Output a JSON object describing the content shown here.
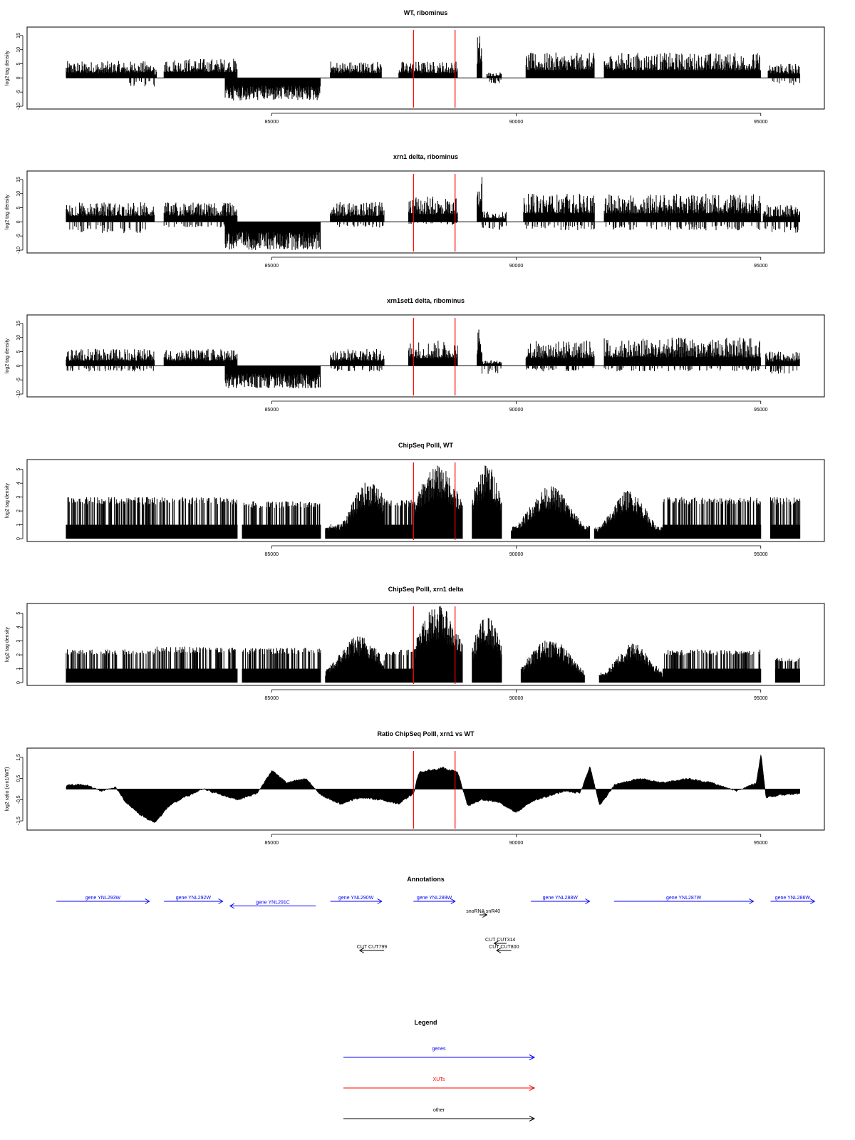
{
  "chart_data": [
    {
      "type": "area",
      "title": "WT, ribominus",
      "ylabel": "log2 tag density",
      "xlim": [
        80800,
        95800
      ],
      "ylim": [
        -10,
        17
      ],
      "yticks": [
        -10,
        -5,
        0,
        5,
        10,
        15
      ],
      "xticks": [
        85000,
        90000,
        95000
      ],
      "markers": [
        87900,
        88750
      ],
      "kind": "rna",
      "segments": [
        {
          "x0": 80800,
          "x1": 82600,
          "min": 0,
          "max": 6,
          "peaks": []
        },
        {
          "x0": 82050,
          "x1": 82650,
          "min": -3,
          "max": 3,
          "peaks": []
        },
        {
          "x0": 82800,
          "x1": 84300,
          "min": 0,
          "max": 7,
          "peaks": []
        },
        {
          "x0": 84050,
          "x1": 86000,
          "min": -8,
          "max": 0,
          "peaks": []
        },
        {
          "x0": 86200,
          "x1": 87250,
          "min": 0,
          "max": 6,
          "peaks": []
        },
        {
          "x0": 87600,
          "x1": 88800,
          "min": 0,
          "max": 6,
          "peaks": []
        },
        {
          "x0": 89200,
          "x1": 89300,
          "min": 0,
          "max": 16,
          "peaks": []
        },
        {
          "x0": 89400,
          "x1": 89700,
          "min": -2,
          "max": 2,
          "peaks": []
        },
        {
          "x0": 90200,
          "x1": 91600,
          "min": 0,
          "max": 9,
          "peaks": []
        },
        {
          "x0": 91800,
          "x1": 95000,
          "min": 0,
          "max": 9,
          "peaks": []
        },
        {
          "x0": 95150,
          "x1": 95800,
          "min": -3,
          "max": 5,
          "peaks": []
        }
      ]
    },
    {
      "type": "area",
      "title": "xrn1 delta, ribominus",
      "ylabel": "log2 tag density",
      "xlim": [
        80800,
        95800
      ],
      "ylim": [
        -10,
        17
      ],
      "yticks": [
        -10,
        -5,
        0,
        5,
        10,
        15
      ],
      "xticks": [
        85000,
        90000,
        95000
      ],
      "markers": [
        87900,
        88750
      ],
      "kind": "rna",
      "segments": [
        {
          "x0": 80800,
          "x1": 82600,
          "min": -4,
          "max": 7,
          "peaks": []
        },
        {
          "x0": 82800,
          "x1": 84300,
          "min": -2,
          "max": 7,
          "peaks": []
        },
        {
          "x0": 84050,
          "x1": 86000,
          "min": -10,
          "max": 0,
          "peaks": []
        },
        {
          "x0": 86200,
          "x1": 87300,
          "min": -2,
          "max": 7,
          "peaks": []
        },
        {
          "x0": 87800,
          "x1": 88800,
          "min": -1,
          "max": 9,
          "peaks": []
        },
        {
          "x0": 89200,
          "x1": 89300,
          "min": 0,
          "max": 17,
          "peaks": []
        },
        {
          "x0": 89300,
          "x1": 89800,
          "min": -3,
          "max": 4,
          "peaks": []
        },
        {
          "x0": 90150,
          "x1": 91600,
          "min": -3,
          "max": 10,
          "peaks": []
        },
        {
          "x0": 91800,
          "x1": 95000,
          "min": -3,
          "max": 10,
          "peaks": []
        },
        {
          "x0": 95050,
          "x1": 95800,
          "min": -4,
          "max": 6,
          "peaks": []
        }
      ]
    },
    {
      "type": "area",
      "title": "xrn1set1 delta, ribominus",
      "ylabel": "log2 tag density",
      "xlim": [
        80800,
        95800
      ],
      "ylim": [
        -10,
        17
      ],
      "yticks": [
        -10,
        -5,
        0,
        5,
        10,
        15
      ],
      "xticks": [
        85000,
        90000,
        95000
      ],
      "markers": [
        87900,
        88750
      ],
      "kind": "rna",
      "segments": [
        {
          "x0": 80800,
          "x1": 82600,
          "min": -2,
          "max": 6,
          "peaks": []
        },
        {
          "x0": 82800,
          "x1": 84300,
          "min": 0,
          "max": 6,
          "peaks": []
        },
        {
          "x0": 84050,
          "x1": 86000,
          "min": -8,
          "max": 0,
          "peaks": []
        },
        {
          "x0": 86200,
          "x1": 87300,
          "min": -2,
          "max": 6,
          "peaks": []
        },
        {
          "x0": 87800,
          "x1": 88800,
          "min": 0,
          "max": 9,
          "peaks": []
        },
        {
          "x0": 89200,
          "x1": 89300,
          "min": 0,
          "max": 14,
          "peaks": []
        },
        {
          "x0": 89300,
          "x1": 89700,
          "min": -3,
          "max": 2,
          "peaks": []
        },
        {
          "x0": 90200,
          "x1": 91600,
          "min": -2,
          "max": 9,
          "peaks": []
        },
        {
          "x0": 91800,
          "x1": 95000,
          "min": -2,
          "max": 10,
          "peaks": []
        },
        {
          "x0": 95100,
          "x1": 95800,
          "min": -3,
          "max": 5,
          "peaks": []
        }
      ]
    },
    {
      "type": "area",
      "title": "ChipSeq PolII, WT",
      "ylabel": "log2 tag density",
      "xlim": [
        80800,
        95800
      ],
      "ylim": [
        0,
        5.5
      ],
      "yticks": [
        0,
        1,
        2,
        3,
        4,
        5
      ],
      "xticks": [
        85000,
        90000,
        95000
      ],
      "markers": [
        87900,
        88750
      ],
      "kind": "chip",
      "segments": [
        {
          "x0": 80800,
          "x1": 84300,
          "min": 0,
          "max": 3,
          "peaks": []
        },
        {
          "x0": 84400,
          "x1": 86000,
          "min": 0,
          "max": 2.7,
          "peaks": []
        },
        {
          "x0": 86100,
          "x1": 87300,
          "min": 0,
          "max": 4.2,
          "peaks": [
            [
              87000,
              4.2,
              500
            ]
          ]
        },
        {
          "x0": 87300,
          "x1": 87900,
          "min": 0,
          "max": 2.8,
          "peaks": []
        },
        {
          "x0": 87900,
          "x1": 88900,
          "min": 0,
          "max": 5.3,
          "peaks": [
            [
              88400,
              5.3,
              600
            ]
          ]
        },
        {
          "x0": 89100,
          "x1": 89700,
          "min": 0,
          "max": 5.4,
          "peaks": [
            [
              89400,
              5.4,
              400
            ]
          ]
        },
        {
          "x0": 89900,
          "x1": 91500,
          "min": 0,
          "max": 3.8,
          "peaks": [
            [
              90700,
              3.8,
              600
            ]
          ]
        },
        {
          "x0": 91600,
          "x1": 93000,
          "min": 0,
          "max": 3.5,
          "peaks": [
            [
              92300,
              3.5,
              500
            ]
          ]
        },
        {
          "x0": 93000,
          "x1": 95000,
          "min": 0,
          "max": 3,
          "peaks": []
        },
        {
          "x0": 95200,
          "x1": 95800,
          "min": 0,
          "max": 3,
          "peaks": []
        }
      ]
    },
    {
      "type": "area",
      "title": "ChipSeq PolII, xrn1 delta",
      "ylabel": "log2 tag density",
      "xlim": [
        80800,
        95800
      ],
      "ylim": [
        0,
        5.5
      ],
      "yticks": [
        0,
        1,
        2,
        3,
        4,
        5
      ],
      "xticks": [
        85000,
        90000,
        95000
      ],
      "markers": [
        87900,
        88750
      ],
      "kind": "chip",
      "segments": [
        {
          "x0": 80800,
          "x1": 82600,
          "min": 0,
          "max": 2.4,
          "peaks": []
        },
        {
          "x0": 82600,
          "x1": 84300,
          "min": 0,
          "max": 2.6,
          "peaks": []
        },
        {
          "x0": 84400,
          "x1": 86000,
          "min": 0,
          "max": 2.5,
          "peaks": []
        },
        {
          "x0": 86100,
          "x1": 87300,
          "min": 0,
          "max": 3.4,
          "peaks": [
            [
              86800,
              3.4,
              600
            ]
          ]
        },
        {
          "x0": 87300,
          "x1": 87900,
          "min": 0,
          "max": 2.4,
          "peaks": []
        },
        {
          "x0": 87900,
          "x1": 88900,
          "min": 0,
          "max": 5.6,
          "peaks": [
            [
              88400,
              5.6,
              600
            ]
          ]
        },
        {
          "x0": 89100,
          "x1": 89700,
          "min": 0,
          "max": 4.8,
          "peaks": [
            [
              89400,
              4.8,
              400
            ]
          ]
        },
        {
          "x0": 90100,
          "x1": 91400,
          "min": 0,
          "max": 3.2,
          "peaks": [
            [
              90700,
              3.2,
              600
            ]
          ]
        },
        {
          "x0": 91700,
          "x1": 93000,
          "min": 0,
          "max": 2.9,
          "peaks": [
            [
              92400,
              2.9,
              500
            ]
          ]
        },
        {
          "x0": 93000,
          "x1": 95000,
          "min": 0,
          "max": 2.4,
          "peaks": []
        },
        {
          "x0": 95300,
          "x1": 95800,
          "min": 0,
          "max": 1.8,
          "peaks": []
        }
      ]
    },
    {
      "type": "area",
      "title": "Ratio ChipSeq PolII, xrn1 vs WT",
      "ylabel": "log2 ratio (xrn1/WT)",
      "xlim": [
        80800,
        95800
      ],
      "ylim": [
        -1.8,
        1.8
      ],
      "yticks": [
        -1.5,
        -0.5,
        0.5,
        1.5
      ],
      "ytick_labels": [
        "-1.5",
        "-0.5",
        "0.5",
        "1.5"
      ],
      "xticks": [
        85000,
        90000,
        95000
      ],
      "markers": [
        87900,
        88750
      ],
      "kind": "ratio",
      "knots": [
        [
          80800,
          0.2
        ],
        [
          81200,
          0.2
        ],
        [
          81500,
          -0.1
        ],
        [
          81800,
          0.1
        ],
        [
          82000,
          -0.6
        ],
        [
          82300,
          -1.2
        ],
        [
          82600,
          -1.6
        ],
        [
          82900,
          -0.8
        ],
        [
          83200,
          -0.4
        ],
        [
          83600,
          0.0
        ],
        [
          84000,
          -0.3
        ],
        [
          84300,
          -0.5
        ],
        [
          84700,
          -0.2
        ],
        [
          85000,
          0.9
        ],
        [
          85300,
          0.3
        ],
        [
          85700,
          0.5
        ],
        [
          86000,
          -0.3
        ],
        [
          86400,
          -0.7
        ],
        [
          86800,
          -0.4
        ],
        [
          87200,
          -0.5
        ],
        [
          87600,
          -0.7
        ],
        [
          87900,
          -0.2
        ],
        [
          88000,
          0.8
        ],
        [
          88500,
          1.0
        ],
        [
          88800,
          0.8
        ],
        [
          89000,
          -0.8
        ],
        [
          89300,
          -0.5
        ],
        [
          89600,
          -0.6
        ],
        [
          90000,
          -1.1
        ],
        [
          90300,
          -0.6
        ],
        [
          90700,
          -0.3
        ],
        [
          91000,
          -0.1
        ],
        [
          91300,
          -0.2
        ],
        [
          91500,
          1.1
        ],
        [
          91700,
          -0.8
        ],
        [
          92000,
          0.2
        ],
        [
          92500,
          0.5
        ],
        [
          93000,
          0.3
        ],
        [
          93500,
          0.5
        ],
        [
          94000,
          0.3
        ],
        [
          94500,
          -0.1
        ],
        [
          94900,
          0.3
        ],
        [
          95000,
          1.7
        ],
        [
          95100,
          -0.4
        ],
        [
          95400,
          -0.3
        ],
        [
          95800,
          -0.2
        ]
      ]
    }
  ],
  "annotations": {
    "title": "Annotations",
    "features": [
      {
        "label": "gene YNL293W",
        "x0": 80600,
        "x1": 82500,
        "dir": "right",
        "row": 0,
        "color": "#0000ff"
      },
      {
        "label": "gene YNL292W",
        "x0": 82800,
        "x1": 84000,
        "dir": "right",
        "row": 0,
        "color": "#0000ff"
      },
      {
        "label": "gene YNL291C",
        "x0": 84150,
        "x1": 85900,
        "dir": "left",
        "row": 0.65,
        "color": "#0000ff"
      },
      {
        "label": "gene YNL290W",
        "x0": 86200,
        "x1": 87250,
        "dir": "right",
        "row": 0,
        "color": "#0000ff"
      },
      {
        "label": "gene YNL289W",
        "x0": 87900,
        "x1": 88750,
        "dir": "right",
        "row": 0,
        "color": "#0000ff"
      },
      {
        "label": "snoRNA snR40",
        "x0": 89250,
        "x1": 89400,
        "dir": "right",
        "row": 1.9,
        "color": "#000000"
      },
      {
        "label": "gene YNL288W",
        "x0": 90300,
        "x1": 91500,
        "dir": "right",
        "row": 0,
        "color": "#0000ff"
      },
      {
        "label": "gene YNL287W",
        "x0": 92000,
        "x1": 94850,
        "dir": "right",
        "row": 0,
        "color": "#0000ff"
      },
      {
        "label": "gene YNL286W",
        "x0": 95200,
        "x1": 96100,
        "dir": "right",
        "row": 0,
        "color": "#0000ff"
      },
      {
        "label": "CUT CUT314",
        "x0": 89550,
        "x1": 89800,
        "dir": "left",
        "row": 5.9,
        "color": "#000000"
      },
      {
        "label": "CUT CUT800",
        "x0": 89600,
        "x1": 89900,
        "dir": "left",
        "row": 6.9,
        "color": "#000000"
      },
      {
        "label": "CUT CUT799",
        "x0": 86800,
        "x1": 87300,
        "dir": "left",
        "row": 6.9,
        "color": "#000000"
      }
    ]
  },
  "legend": {
    "title": "Legend",
    "items": [
      {
        "label": "genes",
        "color": "#0000ff"
      },
      {
        "label": "XUTs",
        "color": "#ff0000"
      },
      {
        "label": "other",
        "color": "#000000"
      }
    ]
  },
  "colors": {
    "marker": "#ff0000",
    "fill": "#000000"
  }
}
